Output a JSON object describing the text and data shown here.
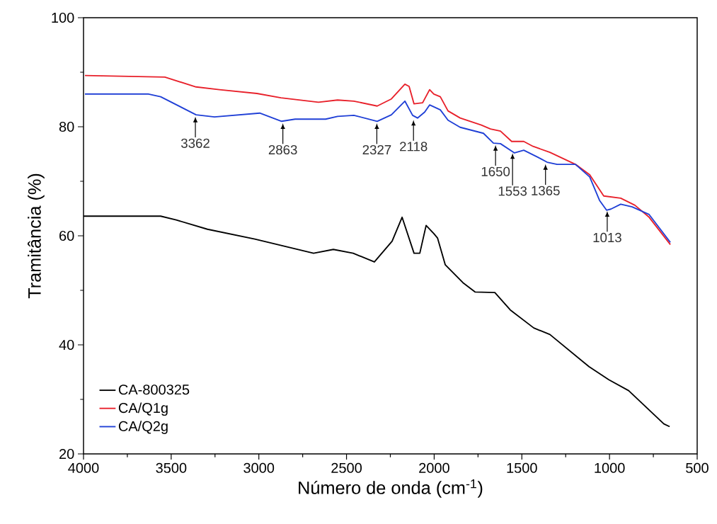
{
  "chart_data": {
    "type": "line",
    "xlabel": "Número de onda (cm$^{-1}$)",
    "ylabel": "Tramitância (%)",
    "xlim": [
      4000,
      500
    ],
    "ylim": [
      20,
      100
    ],
    "xticks": [
      4000,
      3500,
      3000,
      2500,
      2000,
      1500,
      1000,
      500
    ],
    "yticks": [
      20,
      40,
      60,
      80,
      100
    ],
    "grid": false,
    "legend": "bottom left",
    "marker": "none",
    "line_style": "solid",
    "series": [
      {
        "name": "CA-800325",
        "color": "#000000",
        "x": [
          4000,
          3560,
          3471,
          3293,
          3023,
          2688,
          2575,
          2462,
          2341,
          2240,
          2183,
          2115,
          2082,
          2046,
          2002,
          1981,
          1937,
          1836,
          1767,
          1654,
          1566,
          1432,
          1340,
          1117,
          1004,
          891,
          690,
          657
        ],
        "values": [
          63.6,
          63.6,
          62.9,
          61.2,
          59.4,
          56.8,
          57.5,
          56.8,
          55.2,
          59.0,
          63.4,
          56.8,
          56.8,
          61.9,
          60.4,
          59.6,
          54.7,
          51.4,
          49.7,
          49.6,
          46.4,
          43.1,
          41.9,
          36.0,
          33.6,
          31.6,
          25.5,
          25.0
        ]
      },
      {
        "name": "CA/Q1g",
        "color": "#e8202a",
        "x": [
          3992,
          3536,
          3358,
          3225,
          3011,
          2874,
          2660,
          2551,
          2458,
          2325,
          2244,
          2167,
          2143,
          2115,
          2066,
          2026,
          2002,
          1965,
          1921,
          1852,
          1731,
          1679,
          1622,
          1558,
          1489,
          1436,
          1340,
          1194,
          1113,
          1033,
          936,
          855,
          774,
          653
        ],
        "values": [
          89.4,
          89.1,
          87.3,
          86.8,
          86.1,
          85.3,
          84.5,
          84.9,
          84.7,
          83.8,
          85.1,
          87.8,
          87.4,
          84.2,
          84.4,
          86.8,
          86.0,
          85.5,
          82.9,
          81.6,
          80.3,
          79.6,
          79.2,
          77.3,
          77.3,
          76.4,
          75.3,
          73.1,
          71.2,
          67.3,
          66.9,
          65.6,
          63.4,
          58.4
        ]
      },
      {
        "name": "CA/Q2g",
        "color": "#1f3fd6",
        "x": [
          3992,
          3629,
          3560,
          3358,
          3253,
          2995,
          2870,
          2793,
          2619,
          2551,
          2458,
          2325,
          2244,
          2167,
          2123,
          2095,
          2054,
          2026,
          1965,
          1921,
          1852,
          1719,
          1662,
          1622,
          1542,
          1489,
          1408,
          1356,
          1299,
          1194,
          1113,
          1057,
          1017,
          992,
          936,
          871,
          774,
          653
        ],
        "values": [
          86.0,
          86.0,
          85.5,
          82.2,
          81.8,
          82.5,
          81.0,
          81.4,
          81.4,
          81.9,
          82.1,
          81.0,
          82.2,
          84.7,
          82.1,
          81.6,
          82.7,
          84.0,
          83.1,
          81.2,
          79.9,
          78.8,
          77.0,
          76.9,
          75.2,
          75.7,
          74.4,
          73.5,
          73.1,
          73.1,
          70.8,
          66.5,
          64.7,
          64.9,
          65.8,
          65.3,
          63.9,
          58.8
        ]
      }
    ],
    "annotations": [
      {
        "text": "3362",
        "x": 3362,
        "y": 82.2
      },
      {
        "text": "2863",
        "x": 2863,
        "y": 81.0
      },
      {
        "text": "2327",
        "x": 2327,
        "y": 81.0
      },
      {
        "text": "2118",
        "x": 2118,
        "y": 81.6
      },
      {
        "text": "1650",
        "x": 1650,
        "y": 77.0
      },
      {
        "text": "1553",
        "x": 1553,
        "y": 75.5
      },
      {
        "text": "1365",
        "x": 1365,
        "y": 73.5
      },
      {
        "text": "1013",
        "x": 1013,
        "y": 64.9
      }
    ]
  }
}
